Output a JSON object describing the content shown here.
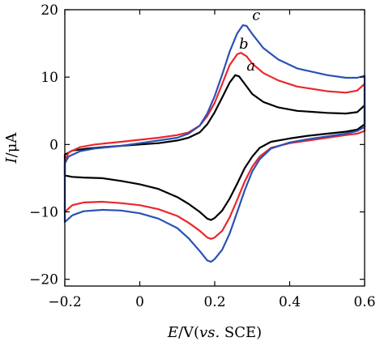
{
  "chart_data": {
    "type": "line",
    "title": "",
    "xlabel": "E/V(vs. SCE)",
    "xlabel_parts": {
      "italic_var": "E",
      "unit_prefix": "/V(",
      "italic_vs": "vs.",
      "suffix": " SCE)"
    },
    "ylabel": "I/μA",
    "ylabel_parts": {
      "italic_var": "I",
      "unit": "/μA"
    },
    "xlim": [
      -0.2,
      0.6
    ],
    "ylim": [
      -21,
      20
    ],
    "x_ticks": [
      -0.2,
      0,
      0.2,
      0.4,
      0.6
    ],
    "x_tick_labels": [
      "−0.2",
      "0",
      "0.2",
      "0.4",
      "0.6"
    ],
    "y_ticks": [
      -20,
      -10,
      0,
      10,
      20
    ],
    "y_tick_labels": [
      "−20",
      "−10",
      "0",
      "10",
      "20"
    ],
    "grid": false,
    "series": [
      {
        "name": "a",
        "color": "#000000",
        "label_at": [
          0.285,
          11.0
        ],
        "forward": [
          [
            -0.2,
            -1.5
          ],
          [
            -0.18,
            -0.9
          ],
          [
            -0.14,
            -0.6
          ],
          [
            -0.1,
            -0.4
          ],
          [
            -0.05,
            -0.2
          ],
          [
            0.0,
            0.0
          ],
          [
            0.05,
            0.2
          ],
          [
            0.1,
            0.6
          ],
          [
            0.13,
            1.0
          ],
          [
            0.16,
            1.8
          ],
          [
            0.18,
            3.0
          ],
          [
            0.2,
            4.8
          ],
          [
            0.22,
            7.0
          ],
          [
            0.24,
            9.2
          ],
          [
            0.255,
            10.3
          ],
          [
            0.265,
            10.1
          ],
          [
            0.28,
            9.0
          ],
          [
            0.3,
            7.5
          ],
          [
            0.33,
            6.3
          ],
          [
            0.37,
            5.5
          ],
          [
            0.42,
            5.0
          ],
          [
            0.5,
            4.7
          ],
          [
            0.55,
            4.6
          ],
          [
            0.58,
            4.8
          ],
          [
            0.6,
            5.8
          ]
        ],
        "reverse": [
          [
            0.6,
            3.0
          ],
          [
            0.58,
            2.2
          ],
          [
            0.55,
            1.9
          ],
          [
            0.5,
            1.6
          ],
          [
            0.45,
            1.3
          ],
          [
            0.4,
            0.9
          ],
          [
            0.35,
            0.4
          ],
          [
            0.32,
            -0.5
          ],
          [
            0.3,
            -1.8
          ],
          [
            0.28,
            -3.5
          ],
          [
            0.26,
            -5.8
          ],
          [
            0.24,
            -8.0
          ],
          [
            0.22,
            -9.8
          ],
          [
            0.2,
            -10.9
          ],
          [
            0.19,
            -11.2
          ],
          [
            0.18,
            -11.0
          ],
          [
            0.16,
            -10.0
          ],
          [
            0.13,
            -8.8
          ],
          [
            0.1,
            -7.8
          ],
          [
            0.05,
            -6.6
          ],
          [
            0.0,
            -5.9
          ],
          [
            -0.05,
            -5.4
          ],
          [
            -0.1,
            -5.0
          ],
          [
            -0.15,
            -4.9
          ],
          [
            -0.18,
            -4.8
          ],
          [
            -0.2,
            -4.6
          ]
        ]
      },
      {
        "name": "b",
        "color": "#e8282d",
        "label_at": [
          0.265,
          14.2
        ],
        "forward": [
          [
            -0.2,
            -2.5
          ],
          [
            -0.19,
            -1.2
          ],
          [
            -0.16,
            -0.4
          ],
          [
            -0.12,
            0.0
          ],
          [
            -0.05,
            0.4
          ],
          [
            0.0,
            0.7
          ],
          [
            0.05,
            1.0
          ],
          [
            0.1,
            1.4
          ],
          [
            0.13,
            1.8
          ],
          [
            0.16,
            2.8
          ],
          [
            0.18,
            4.2
          ],
          [
            0.2,
            6.2
          ],
          [
            0.22,
            9.0
          ],
          [
            0.24,
            11.8
          ],
          [
            0.26,
            13.4
          ],
          [
            0.27,
            13.6
          ],
          [
            0.285,
            13.1
          ],
          [
            0.3,
            12.0
          ],
          [
            0.33,
            10.6
          ],
          [
            0.37,
            9.5
          ],
          [
            0.42,
            8.6
          ],
          [
            0.5,
            7.9
          ],
          [
            0.55,
            7.7
          ],
          [
            0.58,
            8.0
          ],
          [
            0.6,
            9.0
          ]
        ],
        "reverse": [
          [
            0.6,
            2.0
          ],
          [
            0.58,
            1.6
          ],
          [
            0.55,
            1.4
          ],
          [
            0.5,
            1.0
          ],
          [
            0.45,
            0.6
          ],
          [
            0.4,
            0.2
          ],
          [
            0.35,
            -0.5
          ],
          [
            0.32,
            -1.8
          ],
          [
            0.3,
            -3.3
          ],
          [
            0.28,
            -5.5
          ],
          [
            0.26,
            -8.2
          ],
          [
            0.24,
            -10.8
          ],
          [
            0.22,
            -12.8
          ],
          [
            0.2,
            -13.8
          ],
          [
            0.19,
            -14.0
          ],
          [
            0.18,
            -13.8
          ],
          [
            0.16,
            -12.8
          ],
          [
            0.13,
            -11.6
          ],
          [
            0.1,
            -10.6
          ],
          [
            0.05,
            -9.6
          ],
          [
            0.0,
            -9.0
          ],
          [
            -0.05,
            -8.7
          ],
          [
            -0.1,
            -8.5
          ],
          [
            -0.15,
            -8.6
          ],
          [
            -0.18,
            -9.0
          ],
          [
            -0.2,
            -10.0
          ]
        ]
      },
      {
        "name": "c",
        "color": "#2a52b4",
        "label_at": [
          0.3,
          18.5
        ],
        "forward": [
          [
            -0.2,
            -2.8
          ],
          [
            -0.19,
            -1.8
          ],
          [
            -0.16,
            -1.0
          ],
          [
            -0.12,
            -0.6
          ],
          [
            -0.05,
            -0.2
          ],
          [
            0.0,
            0.2
          ],
          [
            0.05,
            0.6
          ],
          [
            0.1,
            1.0
          ],
          [
            0.13,
            1.6
          ],
          [
            0.16,
            2.8
          ],
          [
            0.18,
            4.6
          ],
          [
            0.2,
            7.2
          ],
          [
            0.22,
            10.4
          ],
          [
            0.24,
            13.8
          ],
          [
            0.26,
            16.5
          ],
          [
            0.275,
            17.7
          ],
          [
            0.285,
            17.6
          ],
          [
            0.3,
            16.4
          ],
          [
            0.33,
            14.3
          ],
          [
            0.37,
            12.6
          ],
          [
            0.42,
            11.3
          ],
          [
            0.5,
            10.3
          ],
          [
            0.55,
            9.9
          ],
          [
            0.58,
            9.9
          ],
          [
            0.6,
            10.2
          ]
        ],
        "reverse": [
          [
            0.6,
            2.6
          ],
          [
            0.58,
            2.0
          ],
          [
            0.55,
            1.6
          ],
          [
            0.5,
            1.2
          ],
          [
            0.45,
            0.8
          ],
          [
            0.4,
            0.3
          ],
          [
            0.35,
            -0.6
          ],
          [
            0.32,
            -2.2
          ],
          [
            0.3,
            -4.0
          ],
          [
            0.28,
            -6.8
          ],
          [
            0.26,
            -10.0
          ],
          [
            0.24,
            -13.2
          ],
          [
            0.22,
            -15.6
          ],
          [
            0.2,
            -17.0
          ],
          [
            0.19,
            -17.4
          ],
          [
            0.18,
            -17.2
          ],
          [
            0.16,
            -15.8
          ],
          [
            0.13,
            -13.9
          ],
          [
            0.1,
            -12.4
          ],
          [
            0.05,
            -11.0
          ],
          [
            0.0,
            -10.2
          ],
          [
            -0.05,
            -9.8
          ],
          [
            -0.1,
            -9.7
          ],
          [
            -0.15,
            -9.9
          ],
          [
            -0.18,
            -10.5
          ],
          [
            -0.2,
            -11.5
          ]
        ]
      }
    ]
  }
}
